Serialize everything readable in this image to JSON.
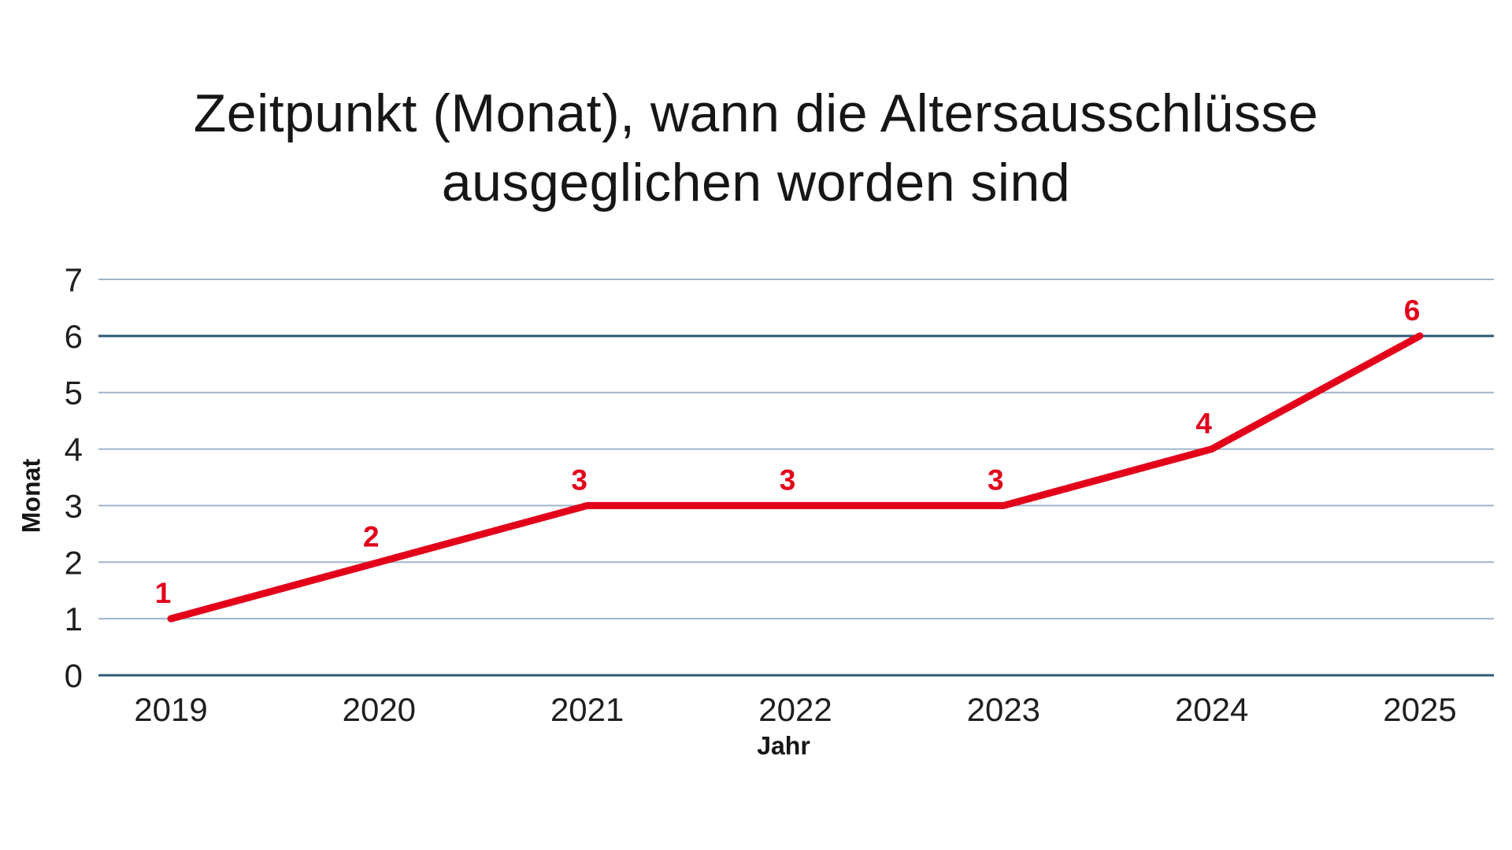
{
  "chart_data": {
    "type": "line",
    "title": "Zeitpunkt (Monat), wann die Altersausschlüsse ausgeglichen worden sind",
    "title_lines": [
      "Zeitpunkt (Monat), wann die Altersausschlüsse",
      "ausgeglichen worden sind"
    ],
    "xlabel": "Jahr",
    "ylabel": "Monat",
    "categories": [
      "2019",
      "2020",
      "2021",
      "2022",
      "2023",
      "2024",
      "2025"
    ],
    "series": [
      {
        "name": "Monat",
        "values": [
          1,
          2,
          3,
          3,
          3,
          4,
          6
        ]
      }
    ],
    "data_labels": [
      "1",
      "2",
      "3",
      "3",
      "3",
      "4",
      "6"
    ],
    "ytick_labels": [
      "0",
      "1",
      "2",
      "3",
      "4",
      "5",
      "6",
      "7"
    ],
    "ylim": [
      0,
      7
    ],
    "grid": "horizontal",
    "emphasized_gridlines": [
      0,
      6
    ],
    "legend": "none",
    "colors": {
      "line": "#e2001a",
      "data_label": "#e2001a",
      "gridline": "#9fb4cb",
      "gridline_emphasis": "#2f5977",
      "title_text": "#161616",
      "tick_text": "#1f1f1f",
      "background": "#ffffff"
    }
  }
}
